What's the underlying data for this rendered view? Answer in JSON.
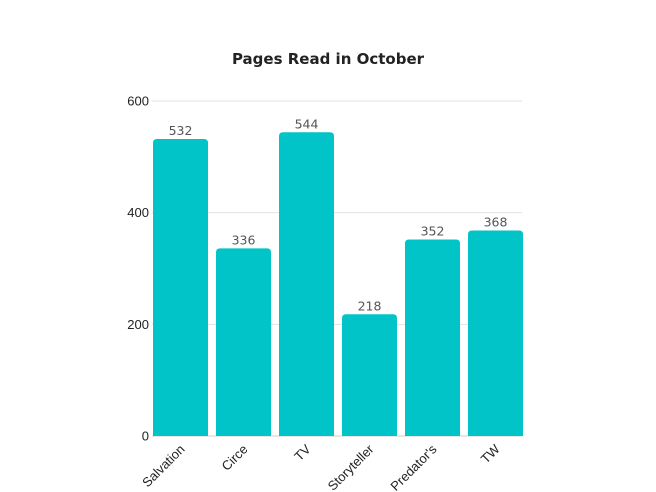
{
  "chart_data": {
    "type": "bar",
    "title": "Pages Read in October",
    "xlabel": "",
    "ylabel": "",
    "categories": [
      "Salvation",
      "Circe",
      "TV",
      "Storyteller",
      "Predator's",
      "TW"
    ],
    "values": [
      532,
      336,
      544,
      218,
      352,
      368
    ],
    "ylim": [
      0,
      600
    ],
    "yticks": [
      0,
      200,
      400,
      600
    ],
    "grid": true,
    "legend": "none",
    "bar_color": "#00c4c8"
  }
}
